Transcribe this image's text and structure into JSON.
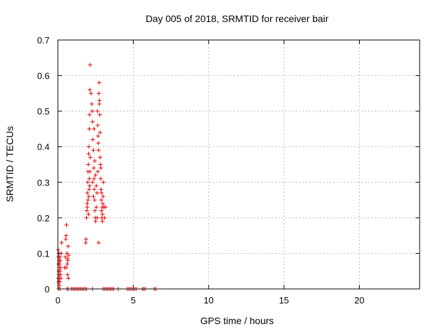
{
  "chart_data": {
    "type": "scatter",
    "title": "Day 005 of 2018, SRMTID for receiver bair",
    "xlabel": "GPS time / hours",
    "ylabel": "SRMTID / TECUs",
    "xlim": [
      0,
      24
    ],
    "ylim": [
      0,
      0.7
    ],
    "xticks": [
      0,
      5,
      10,
      15,
      20
    ],
    "xtick_labels": [
      "0",
      "5",
      "10",
      "15",
      "20"
    ],
    "yticks": [
      0,
      0.1,
      0.2,
      0.3,
      0.4,
      0.5,
      0.6,
      0.7
    ],
    "ytick_labels": [
      "0",
      "0.1",
      "0.2",
      "0.3",
      "0.4",
      "0.5",
      "0.6",
      "0.7"
    ],
    "grid": true,
    "marker": "plus",
    "color": "#e00000",
    "series": [
      {
        "points": [
          [
            0.02,
            0.11
          ],
          [
            0.03,
            0.03
          ],
          [
            0.04,
            0.07
          ],
          [
            0.05,
            0.09
          ],
          [
            0.06,
            0.05
          ],
          [
            0.07,
            0.1
          ],
          [
            0.08,
            0.04
          ],
          [
            0.09,
            0.08
          ],
          [
            0.1,
            0.06
          ],
          [
            0.11,
            0.03
          ],
          [
            0.12,
            0.07
          ],
          [
            0.13,
            0.02
          ],
          [
            0.14,
            0.09
          ],
          [
            0.15,
            0.05
          ],
          [
            0.16,
            0.08
          ],
          [
            0.17,
            0.04
          ],
          [
            0.18,
            0.06
          ],
          [
            0.2,
            0.03
          ],
          [
            0.22,
            0.1
          ],
          [
            0.25,
            0.13
          ],
          [
            0.05,
            0.02
          ],
          [
            0.1,
            0.01
          ],
          [
            0.45,
            0.06
          ],
          [
            0.5,
            0.09
          ],
          [
            0.52,
            0.14
          ],
          [
            0.55,
            0.15
          ],
          [
            0.57,
            0.18
          ],
          [
            0.6,
            0.1
          ],
          [
            0.62,
            0.07
          ],
          [
            0.64,
            0.04
          ],
          [
            0.66,
            0.08
          ],
          [
            0.68,
            0.12
          ],
          [
            0.7,
            0.03
          ],
          [
            0.72,
            0.095
          ],
          [
            0.55,
            0.06
          ],
          [
            0.65,
            0.085
          ],
          [
            1.85,
            0.13
          ],
          [
            1.87,
            0.14
          ],
          [
            1.9,
            0.2
          ],
          [
            1.92,
            0.22
          ],
          [
            1.94,
            0.24
          ],
          [
            1.96,
            0.27
          ],
          [
            1.98,
            0.3
          ],
          [
            2.0,
            0.33
          ],
          [
            2.02,
            0.35
          ],
          [
            2.04,
            0.38
          ],
          [
            2.06,
            0.4
          ],
          [
            2.08,
            0.45
          ],
          [
            2.1,
            0.49
          ],
          [
            2.12,
            0.56
          ],
          [
            2.14,
            0.63
          ],
          [
            2.05,
            0.26
          ],
          [
            2.07,
            0.28
          ],
          [
            2.09,
            0.31
          ],
          [
            2.11,
            0.29
          ],
          [
            2.0,
            0.25
          ],
          [
            1.95,
            0.23
          ],
          [
            2.03,
            0.21
          ],
          [
            2.13,
            0.33
          ],
          [
            2.15,
            0.37
          ],
          [
            2.2,
            0.55
          ],
          [
            2.25,
            0.52
          ],
          [
            2.28,
            0.5
          ],
          [
            2.3,
            0.47
          ],
          [
            2.32,
            0.42
          ],
          [
            2.35,
            0.39
          ],
          [
            2.38,
            0.34
          ],
          [
            2.4,
            0.31
          ],
          [
            2.42,
            0.28
          ],
          [
            2.44,
            0.25
          ],
          [
            2.46,
            0.22
          ],
          [
            2.48,
            0.2
          ],
          [
            2.5,
            0.19
          ],
          [
            2.3,
            0.3
          ],
          [
            2.35,
            0.26
          ],
          [
            2.4,
            0.45
          ],
          [
            2.45,
            0.36
          ],
          [
            2.5,
            0.32
          ],
          [
            2.55,
            0.29
          ],
          [
            2.6,
            0.27
          ],
          [
            2.62,
            0.5
          ],
          [
            2.64,
            0.46
          ],
          [
            2.66,
            0.43
          ],
          [
            2.68,
            0.41
          ],
          [
            2.7,
            0.39
          ],
          [
            2.72,
            0.55
          ],
          [
            2.74,
            0.58
          ],
          [
            2.76,
            0.53
          ],
          [
            2.78,
            0.49
          ],
          [
            2.8,
            0.44
          ],
          [
            2.82,
            0.35
          ],
          [
            2.84,
            0.31
          ],
          [
            2.86,
            0.28
          ],
          [
            2.88,
            0.25
          ],
          [
            2.9,
            0.22
          ],
          [
            2.92,
            0.2
          ],
          [
            2.94,
            0.23
          ],
          [
            2.96,
            0.21
          ],
          [
            2.98,
            0.24
          ],
          [
            3.0,
            0.26
          ],
          [
            3.02,
            0.3
          ],
          [
            3.05,
            0.23
          ],
          [
            3.1,
            0.2
          ],
          [
            3.15,
            0.23
          ],
          [
            2.7,
            0.13
          ],
          [
            2.6,
            0.2
          ],
          [
            2.55,
            0.23
          ],
          [
            2.65,
            0.33
          ],
          [
            2.75,
            0.52
          ],
          [
            2.8,
            0.37
          ],
          [
            2.85,
            0.34
          ],
          [
            2.9,
            0.27
          ],
          [
            2.95,
            0.19
          ]
        ]
      },
      {
        "points": [
          [
            0.05,
            0
          ],
          [
            0.15,
            0
          ],
          [
            0.6,
            0
          ],
          [
            0.7,
            0
          ],
          [
            0.9,
            0
          ],
          [
            1.0,
            0
          ],
          [
            1.1,
            0
          ],
          [
            1.2,
            0
          ],
          [
            1.3,
            0
          ],
          [
            1.4,
            0
          ],
          [
            1.5,
            0
          ],
          [
            1.6,
            0
          ],
          [
            1.7,
            0
          ],
          [
            1.8,
            0
          ],
          [
            1.9,
            0
          ],
          [
            2.3,
            0
          ],
          [
            3.0,
            0
          ],
          [
            3.1,
            0
          ],
          [
            3.2,
            0
          ],
          [
            3.3,
            0
          ],
          [
            3.4,
            0
          ],
          [
            3.5,
            0
          ],
          [
            3.6,
            0
          ],
          [
            3.7,
            0
          ],
          [
            4.0,
            0
          ],
          [
            4.6,
            0
          ],
          [
            4.7,
            0
          ],
          [
            4.8,
            0
          ],
          [
            4.9,
            0
          ],
          [
            5.0,
            0
          ],
          [
            5.1,
            0
          ],
          [
            5.2,
            0
          ],
          [
            5.6,
            0
          ],
          [
            5.7,
            0
          ],
          [
            5.8,
            0
          ],
          [
            6.4,
            0
          ],
          [
            6.5,
            0
          ]
        ]
      }
    ]
  }
}
